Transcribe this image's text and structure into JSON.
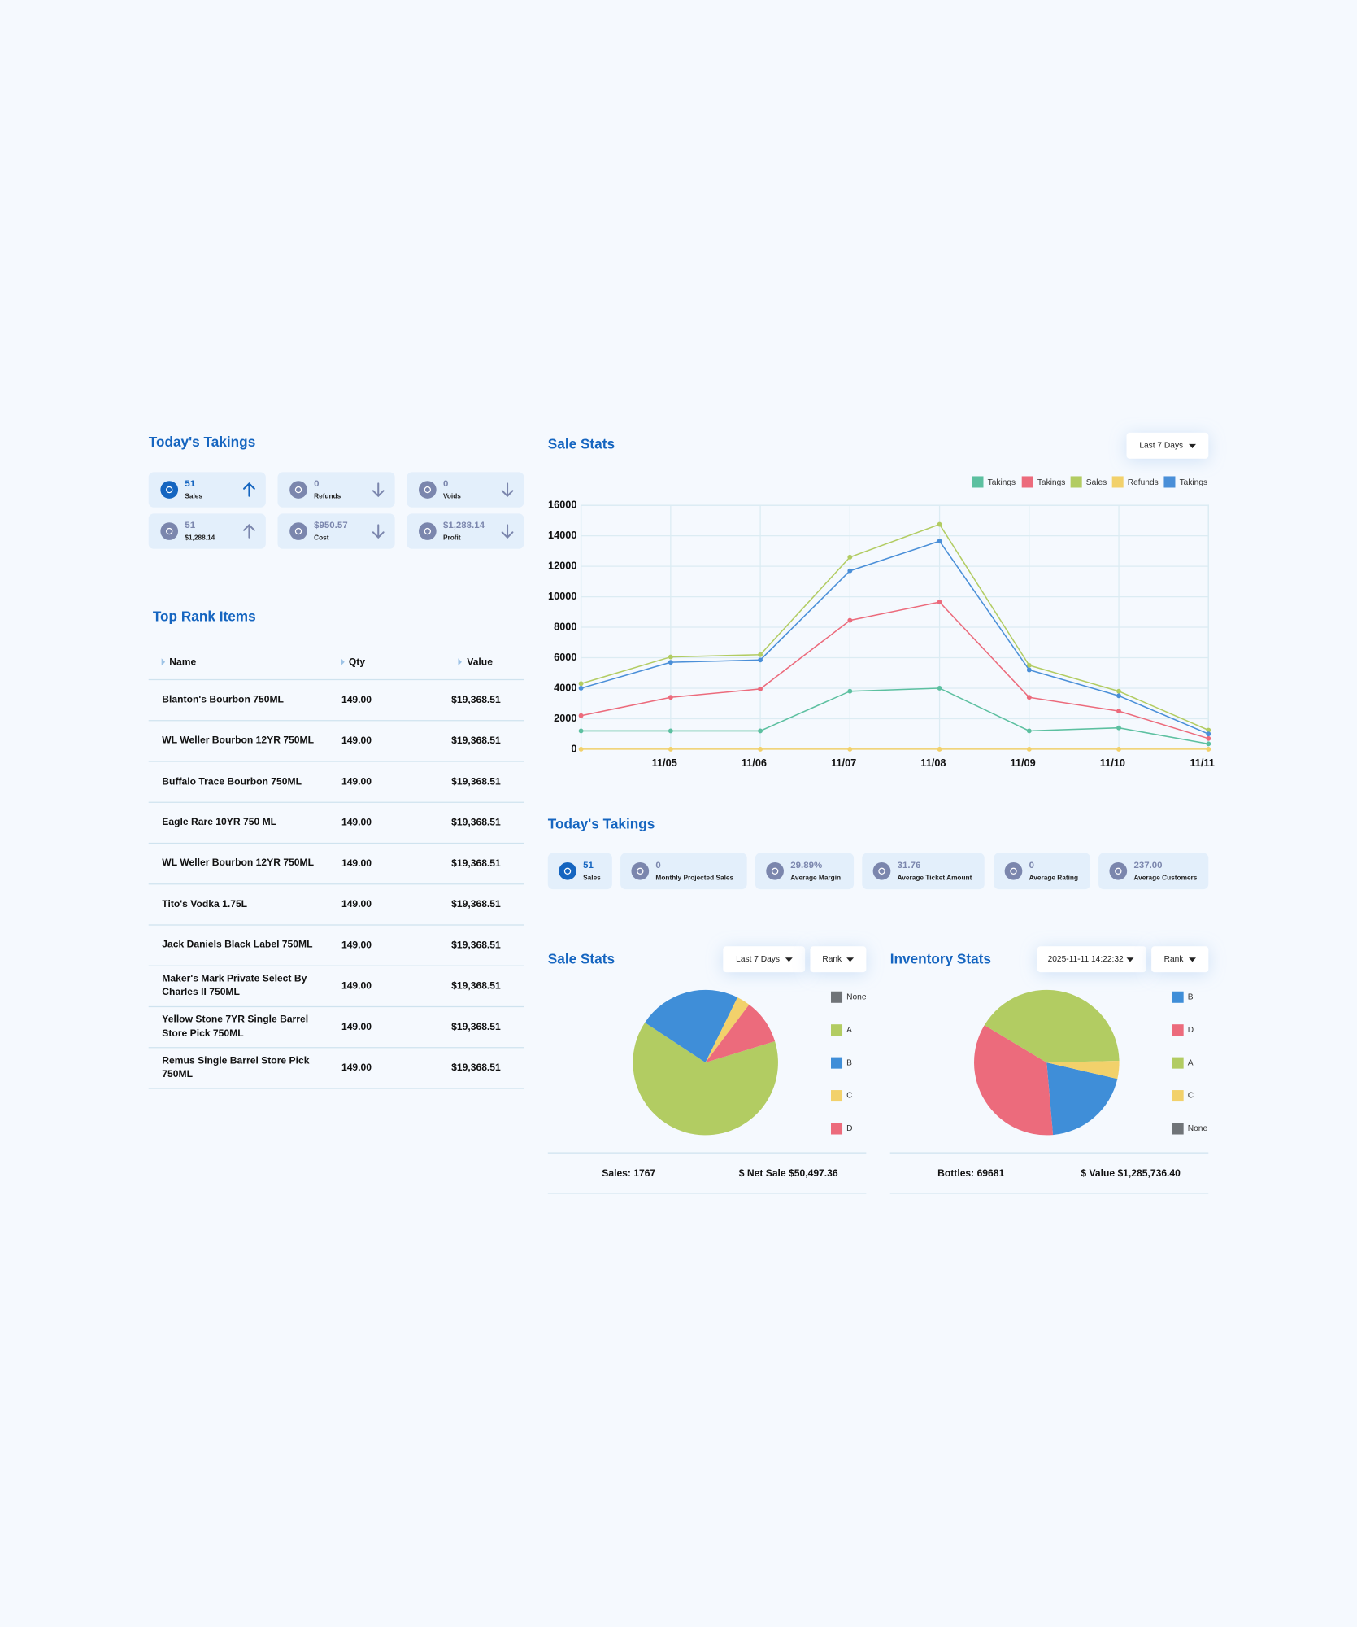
{
  "today_takings": {
    "title": "Today's Takings",
    "cards": [
      {
        "value": "51",
        "label": "Sales"
      },
      {
        "value": "0",
        "label": "Refunds"
      },
      {
        "value": "0",
        "label": "Voids"
      },
      {
        "value": "51",
        "label": "$1,288.14"
      },
      {
        "value": "$950.57",
        "label": "Cost"
      },
      {
        "value": "$1,288.14",
        "label": "Profit"
      }
    ]
  },
  "top_rank_items": {
    "title": "Top Rank Items",
    "columns": [
      "Name",
      "Qty",
      "Value"
    ],
    "rows": [
      [
        "Blanton's Bourbon 750ML",
        "149.00",
        "$19,368.51"
      ],
      [
        "WL Weller Bourbon 12YR 750ML",
        "149.00",
        "$19,368.51"
      ],
      [
        "Buffalo Trace Bourbon 750ML",
        "149.00",
        "$19,368.51"
      ],
      [
        "Eagle Rare 10YR 750 ML",
        "149.00",
        "$19,368.51"
      ],
      [
        "WL Weller Bourbon 12YR 750ML",
        "149.00",
        "$19,368.51"
      ],
      [
        "Tito's Vodka 1.75L",
        "149.00",
        "$19,368.51"
      ],
      [
        "Jack Daniels Black Label 750ML",
        "149.00",
        "$19,368.51"
      ],
      [
        "Maker's Mark Private Select By Charles II 750ML",
        "149.00",
        "$19,368.51"
      ],
      [
        "Yellow Stone 7YR Single Barrel Store Pick 750ML",
        "149.00",
        "$19,368.51"
      ],
      [
        "Remus Single Barrel Store Pick 750ML",
        "149.00",
        "$19,368.51"
      ]
    ]
  },
  "sale_stats_line": {
    "type": "line",
    "title": "Sale Stats",
    "filter": "Last 7 Days",
    "categories": [
      null,
      "11/05",
      "11/06",
      "11/07",
      "11/08",
      "11/09",
      "11/10",
      "11/11"
    ],
    "series": [
      {
        "name": "Takings",
        "color": "#5cc0a0",
        "values": [
          1200,
          1200,
          1200,
          3800,
          4000,
          1200,
          1400,
          350
        ]
      },
      {
        "name": "Takings",
        "color": "#ec6b7c",
        "values": [
          2200,
          3400,
          3950,
          8450,
          9650,
          3400,
          2500,
          700
        ]
      },
      {
        "name": "Sales",
        "color": "#b2cc62",
        "values": [
          4300,
          6050,
          6200,
          12600,
          14750,
          5500,
          3800,
          1250
        ]
      },
      {
        "name": "Refunds",
        "color": "#f2d16b",
        "values": [
          0,
          0,
          0,
          0,
          0,
          0,
          0,
          0
        ]
      },
      {
        "name": "Takings",
        "color": "#4a8fd8",
        "values": [
          4000,
          5700,
          5850,
          11700,
          13650,
          5200,
          3500,
          1000
        ]
      }
    ],
    "ylim": [
      0,
      16000
    ],
    "yticks": [
      0,
      2000,
      4000,
      6000,
      8000,
      10000,
      12000,
      14000,
      16000
    ],
    "grid": true
  },
  "today_takings_summary": {
    "title": "Today's Takings",
    "items": [
      {
        "value": "51",
        "label": "Sales"
      },
      {
        "value": "0",
        "label": "Monthly Projected Sales"
      },
      {
        "value": "29.89%",
        "label": "Average Margin"
      },
      {
        "value": "31.76",
        "label": "Average Ticket Amount"
      },
      {
        "value": "0",
        "label": "Average Rating"
      },
      {
        "value": "237.00",
        "label": "Average Customers"
      }
    ]
  },
  "sale_stats_pie": {
    "type": "pie",
    "title": "Sale Stats",
    "filters": [
      "Last 7 Days",
      "Rank"
    ],
    "categories": [
      "None",
      "A",
      "B",
      "C",
      "D"
    ],
    "colors": [
      "#707478",
      "#b2cc62",
      "#3f8ed8",
      "#f2d16b",
      "#ec6b7c"
    ],
    "values": [
      0,
      64,
      23,
      3,
      10
    ],
    "footer": [
      "Sales: 1767",
      "$ Net Sale $50,497.36"
    ]
  },
  "inventory_stats_pie": {
    "type": "pie",
    "title": "Inventory Stats",
    "filters": [
      "2025-11-11 14:22:32",
      "Rank"
    ],
    "categories": [
      "B",
      "D",
      "A",
      "C",
      "None"
    ],
    "colors": [
      "#3f8ed8",
      "#ec6b7c",
      "#b2cc62",
      "#f2d16b",
      "#707478"
    ],
    "values": [
      20,
      35,
      41,
      4,
      0
    ],
    "footer": [
      "Bottles: 69681",
      "$ Value $1,285,736.40"
    ]
  }
}
